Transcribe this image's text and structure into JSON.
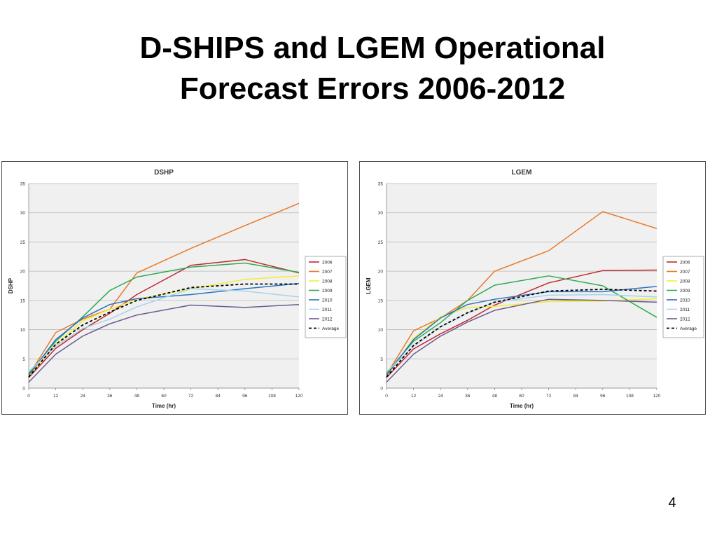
{
  "slide": {
    "title_line1": "D-SHIPS and LGEM Operational",
    "title_line2": "Forecast Errors 2006-2012",
    "page_number": "4"
  },
  "chart_data": [
    {
      "type": "line",
      "title": "DSHP",
      "xlabel": "Time (hr)",
      "ylabel": "DSHP",
      "x": [
        0,
        12,
        24,
        36,
        48,
        72,
        96,
        120
      ],
      "xticks": [
        0,
        12,
        24,
        36,
        48,
        60,
        72,
        84,
        96,
        108,
        120
      ],
      "xlim": [
        0,
        120
      ],
      "ylim": [
        0,
        35
      ],
      "yticks": [
        0,
        5,
        10,
        15,
        20,
        25,
        30,
        35
      ],
      "grid": "horizontal",
      "legend_position": "right",
      "series": [
        {
          "name": "2006",
          "color": "#c0282d",
          "dash": "solid",
          "values": [
            1.8,
            6.8,
            10.0,
            12.8,
            16.0,
            21.0,
            22.0,
            19.7
          ]
        },
        {
          "name": "2007",
          "color": "#e8792a",
          "dash": "solid",
          "values": [
            2.2,
            9.5,
            11.8,
            13.5,
            19.7,
            23.9,
            27.8,
            31.6
          ]
        },
        {
          "name": "2008",
          "color": "#f2ee30",
          "dash": "solid",
          "values": [
            2.0,
            7.5,
            11.5,
            13.5,
            15.2,
            17.0,
            18.6,
            19.2
          ]
        },
        {
          "name": "2009",
          "color": "#2eab54",
          "dash": "solid",
          "values": [
            2.5,
            8.0,
            12.2,
            16.7,
            19.0,
            20.7,
            21.4,
            19.8
          ]
        },
        {
          "name": "2010",
          "color": "#2a72c2",
          "dash": "solid",
          "values": [
            2.2,
            8.3,
            12.0,
            14.3,
            15.3,
            16.0,
            17.0,
            17.9
          ]
        },
        {
          "name": "2011",
          "color": "#a6d3ea",
          "dash": "solid",
          "values": [
            2.8,
            7.2,
            10.2,
            11.8,
            13.9,
            17.0,
            16.6,
            15.6
          ]
        },
        {
          "name": "2012",
          "color": "#6c5a91",
          "dash": "solid",
          "values": [
            1.0,
            5.8,
            8.9,
            11.0,
            12.5,
            14.2,
            13.8,
            14.3
          ]
        },
        {
          "name": "Average",
          "color": "#000000",
          "dash": "dashed",
          "values": [
            1.9,
            7.5,
            10.8,
            13.0,
            15.0,
            17.2,
            17.8,
            17.8
          ]
        }
      ]
    },
    {
      "type": "line",
      "title": "LGEM",
      "xlabel": "Time (hr)",
      "ylabel": "LGEM",
      "x": [
        0,
        12,
        24,
        36,
        48,
        72,
        96,
        120
      ],
      "xticks": [
        0,
        12,
        24,
        36,
        48,
        60,
        72,
        84,
        96,
        108,
        120
      ],
      "xlim": [
        0,
        120
      ],
      "ylim": [
        0,
        35
      ],
      "yticks": [
        0,
        5,
        10,
        15,
        20,
        25,
        30,
        35
      ],
      "grid": "horizontal",
      "legend_position": "right",
      "series": [
        {
          "name": "2006",
          "color": "#c0282d",
          "dash": "solid",
          "values": [
            1.8,
            6.7,
            9.3,
            11.6,
            14.2,
            18.0,
            20.1,
            20.2
          ]
        },
        {
          "name": "2007",
          "color": "#e8792a",
          "dash": "solid",
          "values": [
            2.3,
            9.8,
            12.0,
            15.0,
            20.0,
            23.5,
            30.2,
            27.3
          ]
        },
        {
          "name": "2008",
          "color": "#f2ee30",
          "dash": "solid",
          "values": [
            2.0,
            8.5,
            12.2,
            13.8,
            14.0,
            14.8,
            14.9,
            15.3
          ]
        },
        {
          "name": "2009",
          "color": "#2eab54",
          "dash": "solid",
          "values": [
            2.6,
            8.0,
            11.2,
            15.0,
            17.6,
            19.2,
            17.5,
            12.1
          ]
        },
        {
          "name": "2010",
          "color": "#2a72c2",
          "dash": "solid",
          "values": [
            2.2,
            8.3,
            12.0,
            14.3,
            15.2,
            16.5,
            16.5,
            17.4
          ]
        },
        {
          "name": "2011",
          "color": "#a6d3ea",
          "dash": "solid",
          "values": [
            2.8,
            7.1,
            10.5,
            12.8,
            14.7,
            15.9,
            16.0,
            15.6
          ]
        },
        {
          "name": "2012",
          "color": "#6c5a91",
          "dash": "solid",
          "values": [
            1.0,
            5.8,
            8.9,
            11.3,
            13.3,
            15.2,
            15.0,
            14.7
          ]
        },
        {
          "name": "Average",
          "color": "#000000",
          "dash": "dashed",
          "values": [
            1.9,
            7.3,
            10.5,
            12.9,
            14.7,
            16.6,
            16.9,
            16.6
          ]
        }
      ]
    }
  ]
}
